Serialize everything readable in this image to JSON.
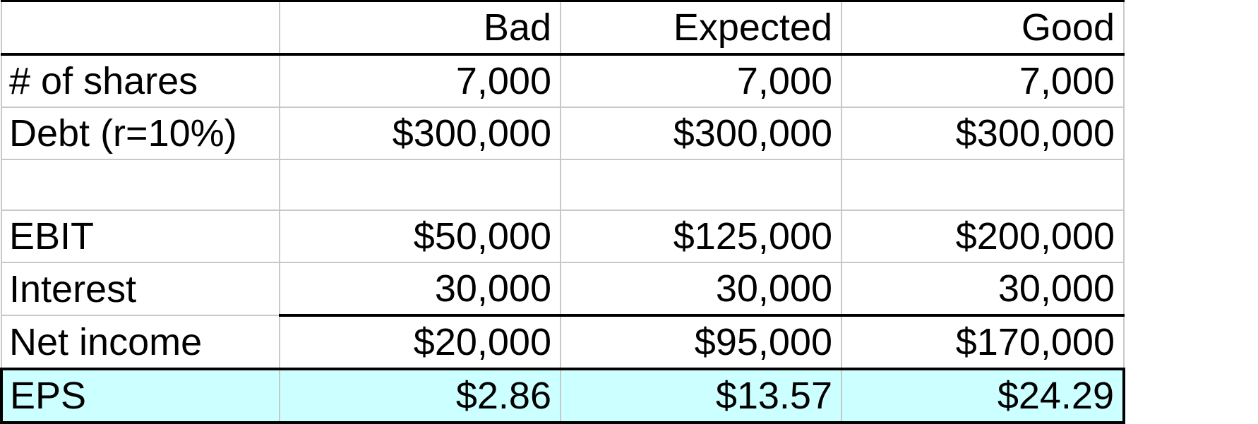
{
  "table": {
    "columns": [
      "",
      "Bad",
      "Expected",
      "Good"
    ],
    "rows": [
      {
        "label": "# of shares",
        "values": [
          "7,000",
          "7,000",
          "7,000"
        ]
      },
      {
        "label": "Debt (r=10%)",
        "values": [
          "$300,000",
          "$300,000",
          "$300,000"
        ]
      },
      {
        "label": "",
        "values": [
          "",
          "",
          ""
        ]
      },
      {
        "label": "EBIT",
        "values": [
          "$50,000",
          "$125,000",
          "$200,000"
        ]
      },
      {
        "label": "Interest",
        "values": [
          "30,000",
          "30,000",
          "30,000"
        ]
      },
      {
        "label": "Net income",
        "values": [
          "$20,000",
          "$95,000",
          "$170,000"
        ]
      },
      {
        "label": "EPS",
        "values": [
          "$2.86",
          "$13.57",
          "$24.29"
        ]
      }
    ]
  },
  "colors": {
    "eps_highlight": "#ccffff",
    "grid": "#c8c8c8",
    "rule": "#000000"
  }
}
